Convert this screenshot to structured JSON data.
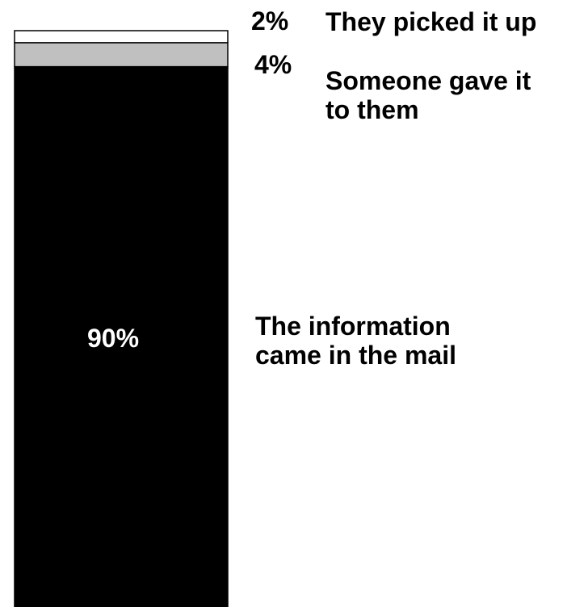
{
  "chart_data": {
    "type": "bar",
    "stacked": true,
    "segments": [
      {
        "value": 90,
        "value_label": "90%",
        "description": "The information came in the mail",
        "color": "#000000",
        "label_color": "#ffffff"
      },
      {
        "value": 4,
        "value_label": "4%",
        "description": "Someone gave it to them",
        "color": "#c0c0c0",
        "label_color": "#000000"
      },
      {
        "value": 2,
        "value_label": "2%",
        "description": "They picked it up",
        "color": "#ffffff",
        "label_color": "#000000"
      }
    ],
    "title": "",
    "xlabel": "",
    "ylabel": "",
    "grid": false
  }
}
